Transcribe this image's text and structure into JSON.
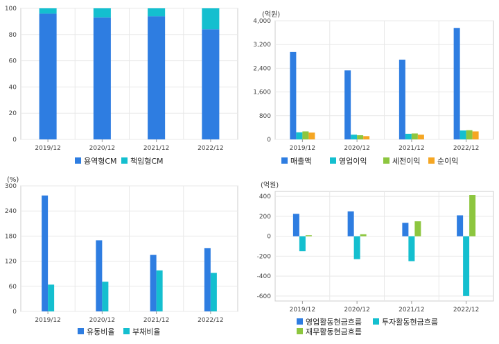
{
  "colors": {
    "blue": "#2e7de1",
    "teal": "#14bfcf",
    "green": "#8dc63f",
    "orange": "#f5a623",
    "grid": "#e8e8e8",
    "frame": "#cccccc"
  },
  "chart_data": [
    {
      "id": "cm",
      "type": "bar",
      "stacked": true,
      "categories": [
        "2019/12",
        "2020/12",
        "2021/12",
        "2022/12"
      ],
      "series": [
        {
          "name": "용역형CM",
          "color": "#2e7de1",
          "values": [
            96,
            93,
            94,
            84
          ]
        },
        {
          "name": "책임형CM",
          "color": "#14bfcf",
          "values": [
            4,
            7,
            6,
            16
          ]
        }
      ],
      "yticks": [
        "0",
        "20",
        "40",
        "60",
        "80",
        "100"
      ],
      "ylim": [
        0,
        100
      ],
      "unit": "",
      "legend_position": "bottom",
      "grid": true
    },
    {
      "id": "income",
      "type": "bar",
      "categories": [
        "2019/12",
        "2020/12",
        "2021/12",
        "2022/12"
      ],
      "series": [
        {
          "name": "매출액",
          "color": "#2e7de1",
          "values": [
            2950,
            2330,
            2690,
            3760
          ]
        },
        {
          "name": "영업이익",
          "color": "#14bfcf",
          "values": [
            240,
            160,
            190,
            300
          ]
        },
        {
          "name": "세전이익",
          "color": "#8dc63f",
          "values": [
            270,
            140,
            200,
            310
          ]
        },
        {
          "name": "순이익",
          "color": "#f5a623",
          "values": [
            230,
            110,
            160,
            270
          ]
        }
      ],
      "yticks": [
        "0",
        "800",
        "1,600",
        "2,400",
        "3,200",
        "4,000"
      ],
      "ylim": [
        0,
        4000
      ],
      "unit": "(억원)",
      "legend_position": "bottom",
      "grid": true
    },
    {
      "id": "ratio",
      "type": "bar",
      "categories": [
        "2019/12",
        "2020/12",
        "2021/12",
        "2022/12"
      ],
      "series": [
        {
          "name": "유동비율",
          "color": "#2e7de1",
          "values": [
            277,
            170,
            135,
            151
          ]
        },
        {
          "name": "부채비율",
          "color": "#14bfcf",
          "values": [
            64,
            71,
            98,
            92
          ]
        }
      ],
      "yticks": [
        "0",
        "60",
        "120",
        "180",
        "240",
        "300"
      ],
      "ylim": [
        0,
        300
      ],
      "unit": "(%)",
      "legend_position": "bottom",
      "grid": true
    },
    {
      "id": "cashflow",
      "type": "bar",
      "categories": [
        "2019/12",
        "2020/12",
        "2021/12",
        "2022/12"
      ],
      "series": [
        {
          "name": "영업활동현금흐름",
          "color": "#2e7de1",
          "values": [
            225,
            250,
            135,
            210
          ]
        },
        {
          "name": "투자활동현금흐름",
          "color": "#14bfcf",
          "values": [
            -150,
            -230,
            -250,
            -600
          ]
        },
        {
          "name": "재무활동현금흐름",
          "color": "#8dc63f",
          "values": [
            10,
            20,
            150,
            415
          ]
        }
      ],
      "yticks": [
        "-600",
        "-400",
        "-200",
        "0",
        "200",
        "400"
      ],
      "ylim": [
        -650,
        450
      ],
      "unit": "(억원)",
      "legend_position": "bottom",
      "grid": true
    }
  ]
}
